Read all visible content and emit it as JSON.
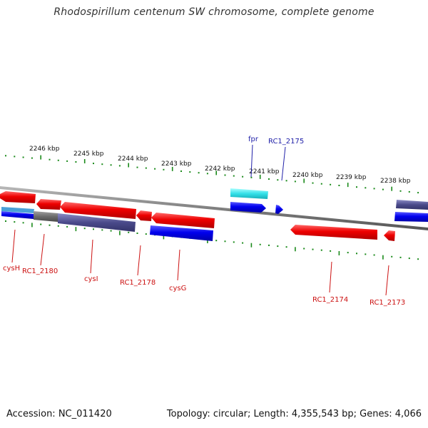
{
  "title": "Rhodospirillum centenum SW chromosome, complete genome",
  "footer": {
    "accession": "Accession: NC_011420",
    "summary": "Topology: circular; Length: 4,355,543 bp; Genes: 4,066"
  },
  "colors": {
    "forward_gene": "#0000ee",
    "reverse_gene": "#ee0000",
    "forward_label": "#1f1fa8",
    "reverse_label": "#cc1111",
    "rna_feature": "#33e0e8",
    "cds_band": "#4a4a8a",
    "tick": "#1a8a1a",
    "backbone": "#808080"
  },
  "scale_ticks": [
    "2246 kbp",
    "2245 kbp",
    "2244 kbp",
    "2243 kbp",
    "2242 kbp",
    "2241 kbp",
    "2240 kbp",
    "2239 kbp",
    "2238 kbp"
  ],
  "forward_labels": [
    "fpr",
    "RC1_2175"
  ],
  "reverse_labels": [
    "cysH",
    "RC1_2180",
    "cysI",
    "RC1_2178",
    "cysG",
    "RC1_2174",
    "RC1_2173"
  ]
}
